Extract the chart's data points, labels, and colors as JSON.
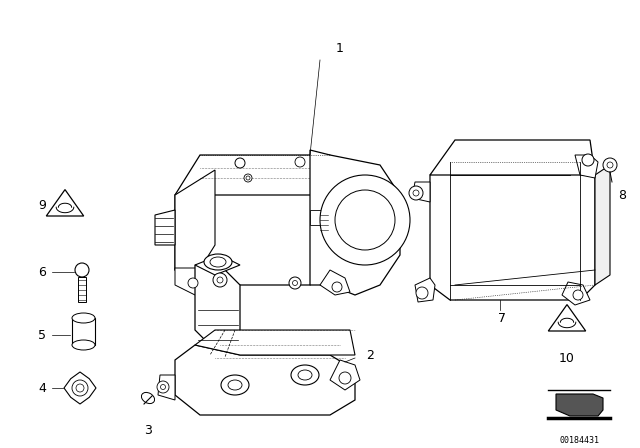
{
  "background_color": "#ffffff",
  "line_color": "#000000",
  "figure_width": 6.4,
  "figure_height": 4.48,
  "dpi": 100,
  "watermark_text": "00184431"
}
